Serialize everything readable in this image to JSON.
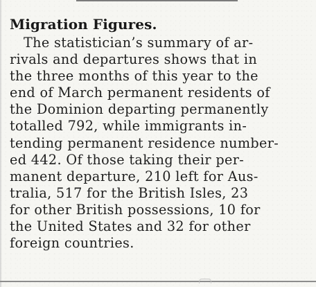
{
  "article": {
    "headline": "Migration Figures.",
    "lines": [
      "The statistician’s summary of ar-",
      "rivals and departures shows that in",
      "the three months of this year to the",
      "end of March permanent residents of",
      "the Dominion departing permanently",
      "totalled 792, while immigrants in-",
      "tending permanent residence number-",
      "ed 442. Of those taking their per-",
      "manent departure, 210 left for Aus-",
      "tralia, 517 for the British Isles, 23",
      "for other British possessions, 10 for",
      "the United States and 32 for other",
      "foreign countries."
    ]
  }
}
